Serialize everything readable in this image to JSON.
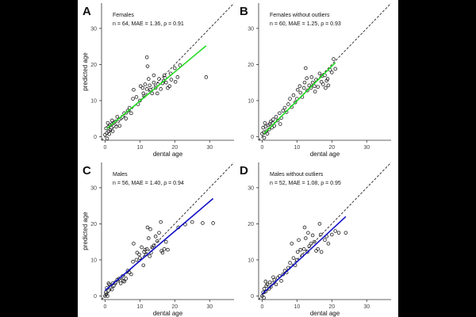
{
  "colors": {
    "background": "#000000",
    "panel_bg": "#ffffff",
    "green_fit": "#22dd22",
    "blue_fit": "#1010c8",
    "point": "#222222",
    "identity_line": "#222222",
    "text": "#111111"
  },
  "chart_data": [
    {
      "panel": "A",
      "type": "scatter",
      "title": "Females",
      "stats": "n = 64,  MAE = 1.36,  ρ = 0.91",
      "xlabel": "dental age",
      "ylabel": "predicted age",
      "xlim": [
        -1,
        37
      ],
      "ylim": [
        -1,
        37
      ],
      "x_ticks": [
        0,
        10,
        20,
        30
      ],
      "y_ticks": [
        0,
        10,
        20,
        30
      ],
      "fit_color": "green",
      "fit": {
        "x": [
          0.5,
          29
        ],
        "y": [
          2.2,
          25.2
        ]
      },
      "identity_line": true,
      "points": [
        [
          0,
          0.5
        ],
        [
          0.3,
          2.3
        ],
        [
          0.5,
          1
        ],
        [
          0.6,
          -0.5
        ],
        [
          1,
          2.8
        ],
        [
          1,
          1.5
        ],
        [
          1.2,
          0.7
        ],
        [
          1.4,
          3.2
        ],
        [
          1.5,
          1.8
        ],
        [
          1.8,
          2.5
        ],
        [
          2,
          3.5
        ],
        [
          2,
          4.5
        ],
        [
          2.2,
          1.5
        ],
        [
          2.5,
          3.8
        ],
        [
          3,
          4.2
        ],
        [
          3.2,
          2.8
        ],
        [
          3.5,
          5.5
        ],
        [
          4,
          4.8
        ],
        [
          4.2,
          3
        ],
        [
          5,
          5.5
        ],
        [
          5.5,
          6.5
        ],
        [
          6,
          5
        ],
        [
          6.5,
          7.2
        ],
        [
          7,
          8
        ],
        [
          7.5,
          6.5
        ],
        [
          8,
          10.5
        ],
        [
          8.2,
          13
        ],
        [
          9,
          11
        ],
        [
          9.5,
          9
        ],
        [
          10,
          10
        ],
        [
          10.2,
          14
        ],
        [
          10.8,
          13.5
        ],
        [
          11,
          12
        ],
        [
          11.2,
          11.2
        ],
        [
          11.5,
          14.5
        ],
        [
          12,
          13.2
        ],
        [
          12,
          22
        ],
        [
          12.2,
          19.5
        ],
        [
          12.5,
          16
        ],
        [
          12.8,
          14.2
        ],
        [
          13,
          13
        ],
        [
          13.5,
          12
        ],
        [
          14,
          15
        ],
        [
          14,
          17
        ],
        [
          14.5,
          13.5
        ],
        [
          15,
          12
        ],
        [
          15.2,
          14.5
        ],
        [
          15.5,
          16
        ],
        [
          16,
          13.2
        ],
        [
          16.5,
          14.8
        ],
        [
          16.8,
          15.5
        ],
        [
          17,
          17
        ],
        [
          17.2,
          16.3
        ],
        [
          17.5,
          15
        ],
        [
          18,
          13.5
        ],
        [
          18.5,
          14
        ],
        [
          18.8,
          17.5
        ],
        [
          19,
          15.8
        ],
        [
          20,
          19
        ],
        [
          20.2,
          15.2
        ],
        [
          20.8,
          16.5
        ],
        [
          21.5,
          19.8
        ],
        [
          29,
          16.5
        ],
        [
          0.8,
          3.8
        ]
      ]
    },
    {
      "panel": "B",
      "type": "scatter",
      "title": "Females without outliers",
      "stats": "n = 60,  MAE = 1.25,  ρ = 0.93",
      "xlabel": "dental age",
      "ylabel": "",
      "xlim": [
        -1,
        37
      ],
      "ylim": [
        -1,
        37
      ],
      "x_ticks": [
        0,
        10,
        20,
        30
      ],
      "y_ticks": [
        0,
        10,
        20,
        30
      ],
      "fit_color": "green",
      "fit": {
        "x": [
          0.5,
          21
        ],
        "y": [
          0.8,
          20.5
        ]
      },
      "identity_line": true,
      "points": [
        [
          0,
          0.8
        ],
        [
          0.3,
          2.5
        ],
        [
          0.5,
          1.2
        ],
        [
          0.6,
          -0.3
        ],
        [
          1,
          2.8
        ],
        [
          1.2,
          1.5
        ],
        [
          1.5,
          0.8
        ],
        [
          1.8,
          3.2
        ],
        [
          2,
          2
        ],
        [
          2.2,
          3.5
        ],
        [
          2.5,
          4.2
        ],
        [
          2.8,
          2.5
        ],
        [
          3,
          3.8
        ],
        [
          3.2,
          4.8
        ],
        [
          3.5,
          3
        ],
        [
          4,
          5.5
        ],
        [
          4.5,
          4.5
        ],
        [
          5,
          6.5
        ],
        [
          5.5,
          5.2
        ],
        [
          6,
          7.2
        ],
        [
          6.5,
          8
        ],
        [
          7,
          6.8
        ],
        [
          7.5,
          9
        ],
        [
          8,
          10.5
        ],
        [
          8.5,
          8.2
        ],
        [
          9,
          11.5
        ],
        [
          9.5,
          9.5
        ],
        [
          10,
          10.5
        ],
        [
          10.2,
          13
        ],
        [
          10.8,
          14
        ],
        [
          11,
          12.2
        ],
        [
          11.5,
          11
        ],
        [
          12,
          13.5
        ],
        [
          12.2,
          15
        ],
        [
          12.5,
          19
        ],
        [
          12.8,
          16.2
        ],
        [
          13,
          12.8
        ],
        [
          13.5,
          14.2
        ],
        [
          14,
          13.5
        ],
        [
          14.2,
          16.5
        ],
        [
          14.5,
          15
        ],
        [
          15,
          14
        ],
        [
          15.2,
          12.5
        ],
        [
          15.5,
          15.8
        ],
        [
          16,
          13.8
        ],
        [
          16.5,
          17.5
        ],
        [
          17,
          15.2
        ],
        [
          17.2,
          16.8
        ],
        [
          17.5,
          14.5
        ],
        [
          18,
          17
        ],
        [
          18.2,
          13.5
        ],
        [
          18.5,
          15.5
        ],
        [
          18.8,
          16
        ],
        [
          19,
          14.2
        ],
        [
          19.5,
          18.5
        ],
        [
          20,
          17.8
        ],
        [
          20.5,
          21.5
        ],
        [
          21,
          18.8
        ],
        [
          0.8,
          3.8
        ],
        [
          5.2,
          3.5
        ]
      ]
    },
    {
      "panel": "C",
      "type": "scatter",
      "title": "Males",
      "stats": "n = 56,  MAE = 1.40,  ρ = 0.94",
      "xlabel": "dental age",
      "ylabel": "predicted age",
      "xlim": [
        -1,
        37
      ],
      "ylim": [
        -1,
        37
      ],
      "x_ticks": [
        0,
        10,
        20,
        30
      ],
      "y_ticks": [
        0,
        10,
        20,
        30
      ],
      "fit_color": "blue",
      "fit": {
        "x": [
          0,
          31
        ],
        "y": [
          1.5,
          27
        ]
      },
      "identity_line": true,
      "points": [
        [
          0,
          0
        ],
        [
          0.2,
          1
        ],
        [
          0.4,
          0.5
        ],
        [
          0.5,
          2.2
        ],
        [
          0.7,
          0
        ],
        [
          1,
          1.5
        ],
        [
          1.2,
          3.2
        ],
        [
          1.5,
          2.5
        ],
        [
          2,
          1.8
        ],
        [
          2.2,
          3.5
        ],
        [
          2.5,
          2.8
        ],
        [
          3,
          3.8
        ],
        [
          4,
          4.8
        ],
        [
          4.5,
          3.5
        ],
        [
          5,
          5.5
        ],
        [
          5.2,
          4.2
        ],
        [
          5.5,
          4
        ],
        [
          6,
          4.8
        ],
        [
          7,
          6.5
        ],
        [
          7.5,
          6
        ],
        [
          8,
          9.5
        ],
        [
          8.2,
          14.5
        ],
        [
          9,
          10
        ],
        [
          9.2,
          12
        ],
        [
          10,
          10.5
        ],
        [
          10.5,
          13.5
        ],
        [
          11,
          8.5
        ],
        [
          11.2,
          12.2
        ],
        [
          11.5,
          12.8
        ],
        [
          11.8,
          11.5
        ],
        [
          12,
          13
        ],
        [
          12.2,
          19
        ],
        [
          12.5,
          16
        ],
        [
          12.8,
          11
        ],
        [
          13,
          18.5
        ],
        [
          13.2,
          12
        ],
        [
          13.5,
          13.5
        ],
        [
          14,
          14
        ],
        [
          14.5,
          16.5
        ],
        [
          15,
          15.2
        ],
        [
          15.5,
          17.5
        ],
        [
          16,
          20.5
        ],
        [
          16.2,
          12.5
        ],
        [
          16.5,
          12
        ],
        [
          17,
          13
        ],
        [
          17.5,
          15
        ],
        [
          18,
          12.8
        ],
        [
          21,
          19
        ],
        [
          23,
          19.8
        ],
        [
          25,
          20.5
        ],
        [
          28,
          20.2
        ],
        [
          31,
          20.2
        ],
        [
          1,
          3.5
        ],
        [
          3.5,
          4.5
        ],
        [
          6.5,
          7
        ],
        [
          9.8,
          11.5
        ]
      ]
    },
    {
      "panel": "D",
      "type": "scatter",
      "title": "Males without outliers",
      "stats": "n = 52,  MAE = 1.08,  ρ = 0.95",
      "xlabel": "dental age",
      "ylabel": "",
      "xlim": [
        -1,
        37
      ],
      "ylim": [
        -1,
        37
      ],
      "x_ticks": [
        0,
        10,
        20,
        30
      ],
      "y_ticks": [
        0,
        10,
        20,
        30
      ],
      "fit_color": "blue",
      "fit": {
        "x": [
          0,
          24
        ],
        "y": [
          0.5,
          22
        ]
      },
      "identity_line": true,
      "points": [
        [
          0,
          0
        ],
        [
          0.3,
          1
        ],
        [
          0.5,
          -0.5
        ],
        [
          0.6,
          2
        ],
        [
          1,
          1.2
        ],
        [
          1.2,
          2.8
        ],
        [
          1.5,
          3.2
        ],
        [
          2,
          2
        ],
        [
          2.2,
          3.8
        ],
        [
          2.5,
          2.5
        ],
        [
          3,
          3.5
        ],
        [
          3.5,
          4.5
        ],
        [
          4,
          3.2
        ],
        [
          4.5,
          5
        ],
        [
          5,
          5.5
        ],
        [
          5.5,
          4.2
        ],
        [
          6,
          6
        ],
        [
          6.5,
          7
        ],
        [
          7,
          6.5
        ],
        [
          7.5,
          7.8
        ],
        [
          8,
          9.2
        ],
        [
          8.5,
          14.5
        ],
        [
          9,
          10.5
        ],
        [
          9.5,
          8.5
        ],
        [
          10,
          10
        ],
        [
          10.2,
          12.2
        ],
        [
          10.5,
          15.5
        ],
        [
          11,
          12.8
        ],
        [
          11.5,
          11.2
        ],
        [
          12,
          13
        ],
        [
          12.2,
          19
        ],
        [
          12.5,
          16
        ],
        [
          13,
          12.2
        ],
        [
          13.2,
          17.5
        ],
        [
          13.5,
          13.8
        ],
        [
          14,
          14.5
        ],
        [
          14.5,
          16.8
        ],
        [
          15,
          15
        ],
        [
          15.5,
          12.5
        ],
        [
          16,
          13
        ],
        [
          16.5,
          20
        ],
        [
          16.8,
          17
        ],
        [
          17,
          12.2
        ],
        [
          18,
          15.5
        ],
        [
          18.5,
          16.5
        ],
        [
          19,
          14.5
        ],
        [
          20,
          17
        ],
        [
          21,
          18
        ],
        [
          22,
          17.5
        ],
        [
          24,
          17.5
        ],
        [
          1,
          4
        ],
        [
          3.2,
          5.2
        ]
      ]
    }
  ]
}
